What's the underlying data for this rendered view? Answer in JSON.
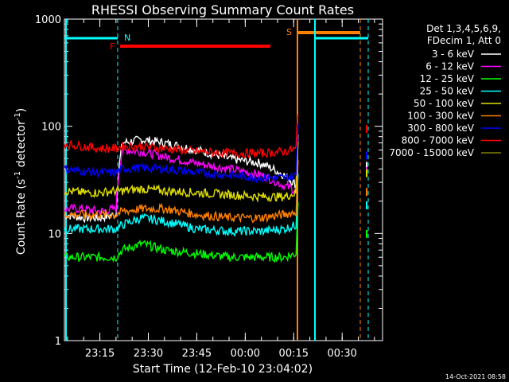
{
  "chart_data": {
    "type": "line",
    "title": "RHESSI Observing Summary Count Rates",
    "xlabel": "Start Time (12-Feb-10 23:04:02)",
    "ylabel_parts": [
      "Count Rate (s",
      "-1",
      " detector",
      "-1",
      ")"
    ],
    "yscale": "log",
    "ylim": [
      1,
      1000
    ],
    "xlim": [
      "23:04:02",
      "00:42:30"
    ],
    "y_ticks": [
      {
        "value": 1,
        "label": "1"
      },
      {
        "value": 10,
        "label": "10"
      },
      {
        "value": 100,
        "label": "100"
      },
      {
        "value": 1000,
        "label": "1000"
      }
    ],
    "x_ticks": [
      {
        "value": "23:15",
        "label": "23:15"
      },
      {
        "value": "23:30",
        "label": "23:30"
      },
      {
        "value": "23:45",
        "label": "23:45"
      },
      {
        "value": "00:00",
        "label": "00:00"
      },
      {
        "value": "00:15",
        "label": "00:15"
      },
      {
        "value": "00:30",
        "label": "00:30"
      }
    ],
    "legend_header": [
      "Det 1,3,4,5,6,9,",
      "FDecim 1, Att 0"
    ],
    "series": [
      {
        "name": "3 - 6 keV",
        "color": "#ffffff",
        "x": [
          "23:04",
          "23:10",
          "23:15",
          "23:20",
          "23:22",
          "23:28",
          "23:35",
          "23:45",
          "23:55",
          "00:05",
          "00:12",
          "00:16"
        ],
        "values": [
          15,
          14,
          14,
          15,
          70,
          75,
          70,
          60,
          50,
          45,
          35,
          28
        ]
      },
      {
        "name": "6 - 12 keV",
        "color": "#ff00ff",
        "x": [
          "23:04",
          "23:10",
          "23:15",
          "23:20",
          "23:22",
          "23:28",
          "23:35",
          "23:45",
          "23:55",
          "00:05",
          "00:12",
          "00:16"
        ],
        "values": [
          17,
          17,
          16,
          17,
          60,
          58,
          52,
          45,
          40,
          35,
          28,
          25
        ]
      },
      {
        "name": "12 - 25 keV",
        "color": "#00ff00",
        "x": [
          "23:04",
          "23:10",
          "23:15",
          "23:20",
          "23:22",
          "23:28",
          "23:35",
          "23:45",
          "23:55",
          "00:05",
          "00:12",
          "00:16"
        ],
        "values": [
          6,
          6,
          6,
          6,
          7,
          8,
          7,
          6.5,
          6,
          6,
          6,
          6.5
        ]
      },
      {
        "name": "25 - 50 keV",
        "color": "#00ffff",
        "x": [
          "23:04",
          "23:10",
          "23:15",
          "23:20",
          "23:22",
          "23:28",
          "23:35",
          "23:45",
          "23:55",
          "00:05",
          "00:12",
          "00:16"
        ],
        "values": [
          11,
          11,
          11,
          11,
          12,
          14,
          13,
          11,
          10.5,
          10.5,
          11,
          12
        ]
      },
      {
        "name": "50 - 100 keV",
        "color": "#e0e000",
        "x": [
          "23:04",
          "23:10",
          "23:15",
          "23:20",
          "23:22",
          "23:28",
          "23:35",
          "23:45",
          "23:55",
          "00:05",
          "00:12",
          "00:16"
        ],
        "values": [
          25,
          24,
          24,
          25,
          25,
          26,
          25,
          24,
          23,
          22,
          22,
          24
        ]
      },
      {
        "name": "100 - 300 keV",
        "color": "#ff8000",
        "x": [
          "23:04",
          "23:10",
          "23:15",
          "23:20",
          "23:22",
          "23:28",
          "23:35",
          "23:45",
          "23:55",
          "00:05",
          "00:12",
          "00:16"
        ],
        "values": [
          15,
          15,
          15,
          15,
          16,
          17,
          17,
          15,
          14,
          14,
          15,
          16
        ]
      },
      {
        "name": "300 - 800 keV",
        "color": "#0000ff",
        "x": [
          "23:04",
          "23:10",
          "23:15",
          "23:20",
          "23:22",
          "23:28",
          "23:35",
          "23:45",
          "23:55",
          "00:05",
          "00:12",
          "00:16"
        ],
        "values": [
          40,
          38,
          37,
          37,
          40,
          41,
          40,
          37,
          35,
          33,
          33,
          35
        ]
      },
      {
        "name": "800 - 7000 keV",
        "color": "#ff0000",
        "x": [
          "23:04",
          "23:10",
          "23:15",
          "23:20",
          "23:22",
          "23:28",
          "23:35",
          "23:45",
          "23:55",
          "00:05",
          "00:12",
          "00:16"
        ],
        "values": [
          68,
          65,
          62,
          62,
          65,
          65,
          62,
          58,
          56,
          56,
          58,
          62
        ]
      },
      {
        "name": "7000 - 15000 keV",
        "color": "#808000",
        "x": [],
        "values": []
      }
    ],
    "markers": [
      {
        "label": "N",
        "color": "#00ffff"
      },
      {
        "label": "F",
        "color": "#ff0000"
      },
      {
        "label": "S",
        "color": "#ff8000"
      }
    ],
    "timestamp": "14-Oct-2021 08:58"
  }
}
